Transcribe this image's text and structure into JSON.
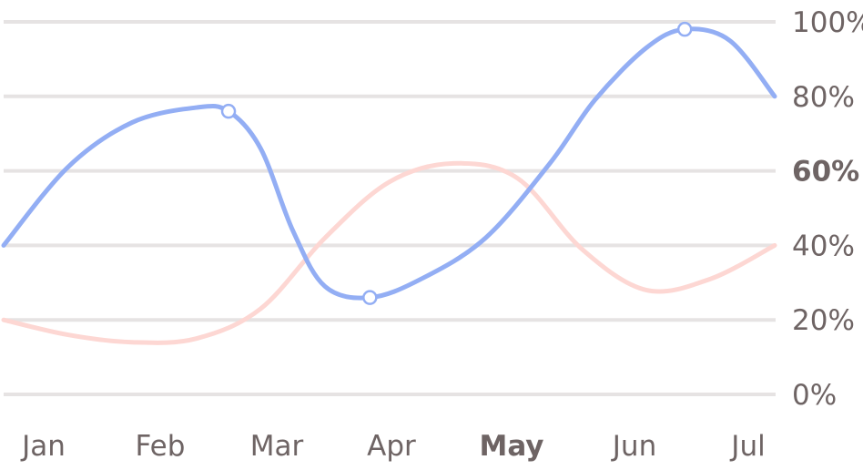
{
  "chart_data": {
    "type": "line",
    "categories": [
      "Jan",
      "Feb",
      "Mar",
      "Apr",
      "May",
      "Jun",
      "Jul"
    ],
    "highlight_category": "May",
    "highlight_tick": "60%",
    "y_ticks": [
      "0%",
      "20%",
      "40%",
      "60%",
      "80%",
      "100%"
    ],
    "y_tick_values": [
      0,
      20,
      40,
      60,
      80,
      100
    ],
    "ylim": [
      0,
      100
    ],
    "xlim": [
      0,
      6
    ],
    "grid": true,
    "y_axis_side": "right",
    "series": [
      {
        "color": "#93aef4",
        "points": [
          [
            0,
            40
          ],
          [
            0.5,
            61
          ],
          [
            1,
            73
          ],
          [
            1.5,
            77
          ],
          [
            1.75,
            76
          ],
          [
            2,
            66
          ],
          [
            2.25,
            44
          ],
          [
            2.5,
            29
          ],
          [
            2.85,
            26
          ],
          [
            3.25,
            31
          ],
          [
            3.75,
            42
          ],
          [
            4.25,
            62
          ],
          [
            4.6,
            79
          ],
          [
            5,
            93
          ],
          [
            5.3,
            98
          ],
          [
            5.65,
            95
          ],
          [
            6,
            80
          ]
        ],
        "markers": [
          [
            1.75,
            76
          ],
          [
            2.85,
            26
          ],
          [
            5.3,
            98
          ]
        ]
      },
      {
        "color": "#fdd7d3",
        "points": [
          [
            0,
            20
          ],
          [
            0.5,
            16
          ],
          [
            1,
            14
          ],
          [
            1.5,
            15
          ],
          [
            2,
            23
          ],
          [
            2.5,
            42
          ],
          [
            3,
            57
          ],
          [
            3.5,
            62
          ],
          [
            4,
            58
          ],
          [
            4.5,
            39
          ],
          [
            5,
            28
          ],
          [
            5.5,
            31
          ],
          [
            6,
            40
          ]
        ],
        "markers": []
      }
    ],
    "colors": {
      "text": "#6e6464",
      "highlight": "#d99be4",
      "grid": "#e6e3e3"
    }
  }
}
